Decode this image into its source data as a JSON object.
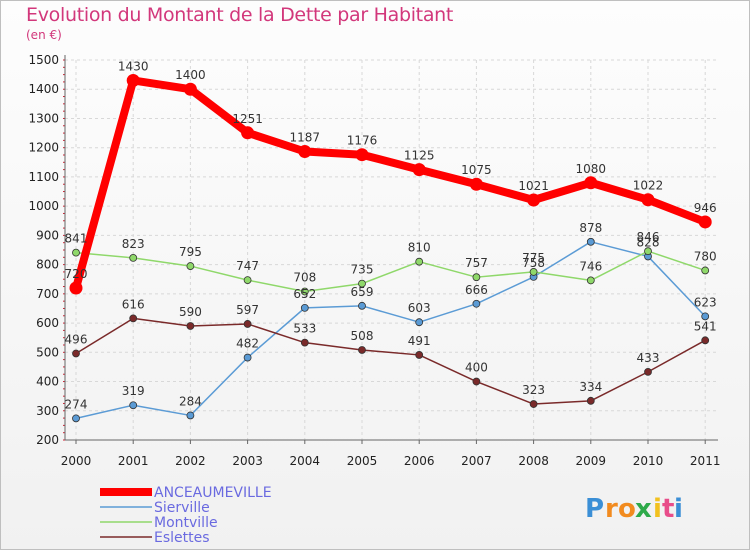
{
  "title": "Evolution du Montant de la Dette par Habitant",
  "subtitle": "(en €)",
  "logo": {
    "letters": [
      "P",
      "r",
      "o",
      "x",
      "i",
      "t",
      "i"
    ],
    "colors": [
      "#3b8fd6",
      "#f28b1f",
      "#f28b1f",
      "#2eaa4a",
      "#f2c11f",
      "#e84d8a",
      "#3b8fd6"
    ]
  },
  "chart_data": {
    "type": "line",
    "x": [
      "2000",
      "2001",
      "2002",
      "2003",
      "2004",
      "2005",
      "2006",
      "2007",
      "2008",
      "2009",
      "2010",
      "2011"
    ],
    "ylim": [
      200,
      1500
    ],
    "yticks": [
      200,
      300,
      400,
      500,
      600,
      700,
      800,
      900,
      1000,
      1100,
      1200,
      1300,
      1400,
      1500
    ],
    "grid": true,
    "legend_position": "bottom-left",
    "series": [
      {
        "name": "ANCEAUMEVILLE",
        "color": "#ff0000",
        "width": 8,
        "marker": 6.5,
        "values": [
          720,
          1430,
          1400,
          1251,
          1187,
          1176,
          1125,
          1075,
          1021,
          1080,
          1022,
          946
        ],
        "labels": [
          "720",
          "1430",
          "1400",
          "1251",
          "1187",
          "1176",
          "1125",
          "1075",
          "1021",
          "1080",
          "1022",
          "946"
        ]
      },
      {
        "name": "Sierville",
        "color": "#5b9bd5",
        "width": 1.5,
        "marker": 3.5,
        "values": [
          274,
          319,
          284,
          482,
          652,
          659,
          603,
          666,
          758,
          878,
          828,
          623
        ],
        "labels": [
          "274",
          "319",
          "284",
          "482",
          "652",
          "659",
          "603",
          "666",
          "758",
          "878",
          "828",
          "623"
        ]
      },
      {
        "name": "Montville",
        "color": "#8fd86a",
        "width": 1.5,
        "marker": 3.5,
        "values": [
          841,
          823,
          795,
          747,
          708,
          735,
          810,
          757,
          775,
          746,
          846,
          780
        ],
        "labels": [
          "841",
          "823",
          "795",
          "747",
          "708",
          "735",
          "810",
          "757",
          "775",
          "746",
          "846",
          "780"
        ]
      },
      {
        "name": "Eslettes",
        "color": "#7a2a2a",
        "width": 1.5,
        "marker": 3.5,
        "values": [
          496,
          616,
          590,
          597,
          533,
          508,
          491,
          400,
          323,
          334,
          433,
          541
        ],
        "labels": [
          "496",
          "616",
          "590",
          "597",
          "533",
          "508",
          "491",
          "400",
          "323",
          "334",
          "433",
          "541"
        ]
      }
    ]
  }
}
